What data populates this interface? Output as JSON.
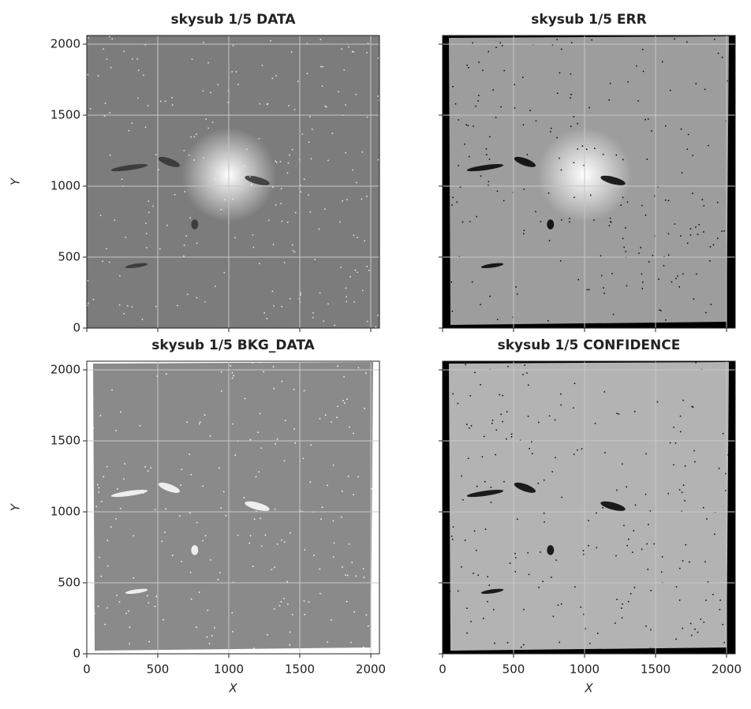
{
  "chart_data": [
    {
      "type": "image",
      "title": "skysub 1/5 DATA",
      "ylabel": "Y",
      "xlim": [
        0,
        2061
      ],
      "ylim": [
        0,
        2061
      ],
      "xticks": [
        0,
        500,
        1000,
        1500,
        2000
      ],
      "yticks": [
        0,
        500,
        1000,
        1500,
        2000
      ],
      "show_xticklabels": false,
      "show_yticklabels": true,
      "grid": true
    },
    {
      "type": "image",
      "title": "skysub 1/5 ERR",
      "xlim": [
        0,
        2061
      ],
      "ylim": [
        0,
        2061
      ],
      "xticks": [
        0,
        500,
        1000,
        1500,
        2000
      ],
      "yticks": [
        0,
        500,
        1000,
        1500,
        2000
      ],
      "show_xticklabels": false,
      "show_yticklabels": false,
      "grid": true
    },
    {
      "type": "image",
      "title": "skysub 1/5 BKG_DATA",
      "xlabel": "X",
      "ylabel": "Y",
      "xlim": [
        0,
        2061
      ],
      "ylim": [
        0,
        2061
      ],
      "xticks": [
        0,
        500,
        1000,
        1500,
        2000
      ],
      "yticks": [
        0,
        500,
        1000,
        1500,
        2000
      ],
      "show_xticklabels": true,
      "show_yticklabels": true,
      "grid": true
    },
    {
      "type": "image",
      "title": "skysub 1/5 CONFIDENCE",
      "xlabel": "X",
      "xlim": [
        0,
        2061
      ],
      "ylim": [
        0,
        2061
      ],
      "xticks": [
        0,
        500,
        1000,
        1500,
        2000
      ],
      "yticks": [
        0,
        500,
        1000,
        1500,
        2000
      ],
      "show_xticklabels": true,
      "show_yticklabels": false,
      "grid": true
    }
  ]
}
